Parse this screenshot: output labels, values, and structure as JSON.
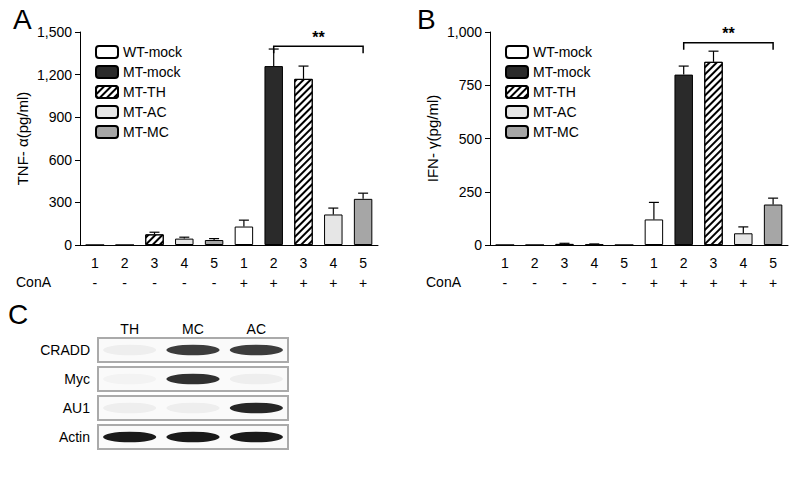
{
  "chart_data": [
    {
      "type": "bar",
      "title": "A",
      "y_label": "TNF- α(pg/ml)",
      "x_label": "ConA",
      "categories": [
        "1",
        "2",
        "3",
        "4",
        "5",
        "1",
        "2",
        "3",
        "4",
        "5"
      ],
      "conditions": [
        "-",
        "-",
        "-",
        "-",
        "-",
        "+",
        "+",
        "+",
        "+",
        "+"
      ],
      "ylim": [
        0,
        1500
      ],
      "yticks": [
        0,
        300,
        600,
        900,
        1200,
        1500
      ],
      "grid": false,
      "legend": "upper left",
      "series": [
        {
          "name": "WT-mock",
          "color": "#ffffff",
          "values": [
            0,
            null,
            null,
            null,
            null,
            130,
            null,
            null,
            null,
            null
          ],
          "errors": [
            0,
            null,
            null,
            null,
            null,
            45,
            null,
            null,
            null,
            null
          ]
        },
        {
          "name": "MT-mock",
          "color": "#2a2a2a",
          "values": [
            null,
            0,
            null,
            null,
            null,
            null,
            1260,
            null,
            null,
            null
          ],
          "errors": [
            null,
            0,
            null,
            null,
            null,
            null,
            120,
            null,
            null,
            null
          ]
        },
        {
          "name": "MT-TH",
          "color": "#ffffff",
          "marker": "hatch",
          "values": [
            null,
            null,
            75,
            null,
            null,
            null,
            null,
            1170,
            null,
            null
          ],
          "errors": [
            null,
            null,
            15,
            null,
            null,
            null,
            null,
            90,
            null,
            null
          ]
        },
        {
          "name": "MT-AC",
          "color": "#e6e6e6",
          "values": [
            null,
            null,
            null,
            45,
            null,
            null,
            null,
            null,
            215,
            null
          ],
          "errors": [
            null,
            null,
            null,
            10,
            null,
            null,
            null,
            null,
            45,
            null
          ]
        },
        {
          "name": "MT-MC",
          "color": "#a6a6a6",
          "values": [
            null,
            null,
            null,
            null,
            35,
            null,
            null,
            null,
            null,
            325
          ],
          "errors": [
            null,
            null,
            null,
            null,
            10,
            null,
            null,
            null,
            null,
            40
          ]
        }
      ],
      "annotations": [
        {
          "text": "**",
          "from": 6,
          "to": 9,
          "y": 1400
        }
      ]
    },
    {
      "type": "bar",
      "title": "B",
      "y_label": "IFN- γ(pg/ml)",
      "x_label": "ConA",
      "categories": [
        "1",
        "2",
        "3",
        "4",
        "5",
        "1",
        "2",
        "3",
        "4",
        "5"
      ],
      "conditions": [
        "-",
        "-",
        "-",
        "-",
        "-",
        "+",
        "+",
        "+",
        "+",
        "+"
      ],
      "ylim": [
        0,
        1000
      ],
      "yticks": [
        0,
        250,
        500,
        750,
        1000
      ],
      "grid": false,
      "legend": "upper left",
      "series": [
        {
          "name": "WT-mock",
          "color": "#ffffff",
          "values": [
            0,
            null,
            null,
            null,
            null,
            120,
            null,
            null,
            null,
            null
          ],
          "errors": [
            0,
            null,
            null,
            null,
            null,
            80,
            null,
            null,
            null,
            null
          ]
        },
        {
          "name": "MT-mock",
          "color": "#2a2a2a",
          "values": [
            null,
            0,
            null,
            null,
            null,
            null,
            800,
            null,
            null,
            null
          ],
          "errors": [
            null,
            0,
            null,
            null,
            null,
            null,
            40,
            null,
            null,
            null
          ]
        },
        {
          "name": "MT-TH",
          "color": "#ffffff",
          "marker": "hatch",
          "values": [
            null,
            null,
            5,
            null,
            null,
            null,
            null,
            860,
            null,
            null
          ],
          "errors": [
            null,
            null,
            3,
            null,
            null,
            null,
            null,
            50,
            null,
            null
          ]
        },
        {
          "name": "MT-AC",
          "color": "#e6e6e6",
          "values": [
            null,
            null,
            null,
            3,
            null,
            null,
            null,
            null,
            55,
            null
          ],
          "errors": [
            null,
            null,
            null,
            2,
            null,
            null,
            null,
            null,
            30,
            null
          ]
        },
        {
          "name": "MT-MC",
          "color": "#a6a6a6",
          "values": [
            null,
            null,
            null,
            null,
            0,
            null,
            null,
            null,
            null,
            190
          ],
          "errors": [
            null,
            null,
            null,
            null,
            0,
            null,
            null,
            null,
            null,
            30
          ]
        }
      ],
      "annotations": [
        {
          "text": "**",
          "from": 6,
          "to": 9,
          "y": 950
        }
      ]
    }
  ],
  "blot": {
    "label": "C",
    "lanes": [
      "TH",
      "MC",
      "AC"
    ],
    "rows": [
      {
        "name": "CRADD",
        "bands": [
          0.05,
          0.85,
          0.85
        ]
      },
      {
        "name": "Myc",
        "bands": [
          0.03,
          0.9,
          0.05
        ]
      },
      {
        "name": "AU1",
        "bands": [
          0.05,
          0.05,
          0.95
        ]
      },
      {
        "name": "Actin",
        "bands": [
          1,
          1,
          1
        ]
      }
    ]
  }
}
